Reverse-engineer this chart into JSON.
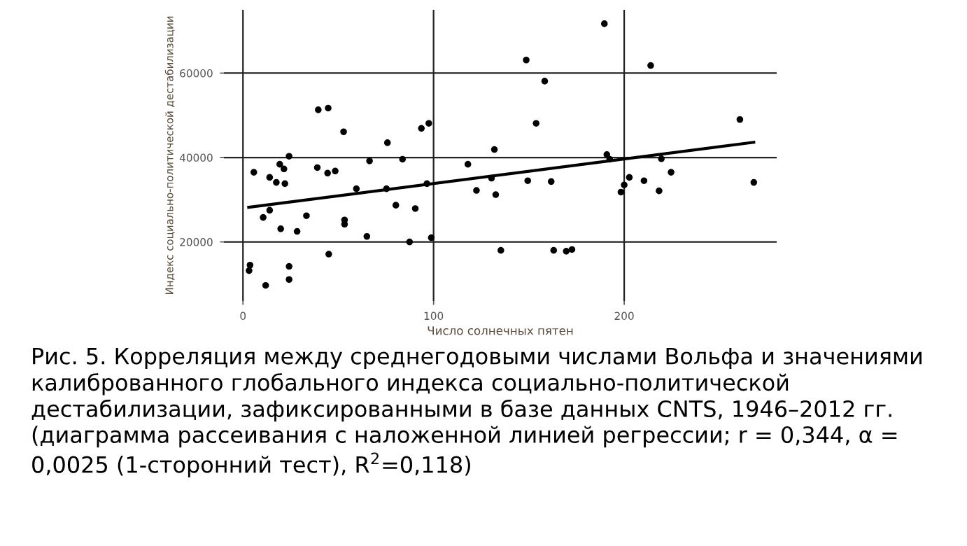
{
  "chart_data": {
    "type": "scatter",
    "xlabel": "Число солнечных пятен",
    "ylabel": "Индекс социально-политической дестабилизации",
    "xlim": [
      -10,
      280
    ],
    "ylim": [
      6000,
      75000
    ],
    "xticks": [
      0,
      100,
      200
    ],
    "yticks": [
      20000,
      40000,
      60000
    ],
    "grid": true,
    "marker": "circle",
    "series": [
      {
        "color": "#000000",
        "x": [
          3.7,
          3.2,
          5.7,
          11.9,
          14,
          10.6,
          14,
          19.3,
          21.5,
          17.5,
          22,
          24.2,
          19.8,
          24.2,
          24.2,
          28.4,
          33.3,
          39,
          39.5,
          44.7,
          44.4,
          48.4,
          45,
          52.8,
          53.3,
          53.3,
          59.5,
          65,
          66.4,
          75.8,
          75.3,
          83.7,
          80.2,
          87.4,
          90.4,
          93.6,
          97.5,
          96.5,
          98.8,
          118,
          122.5,
          130.4,
          131.9,
          132.6,
          135.3,
          148.6,
          149.4,
          153.8,
          158.3,
          161.7,
          163,
          169.6,
          172.6,
          189.6,
          213.9,
          190.9,
          192.4,
          198.3,
          200,
          202.7,
          210.4,
          218.3,
          219.5,
          224.6,
          260.7,
          268
        ],
        "values": [
          14500,
          13200,
          36500,
          9700,
          35300,
          25800,
          27500,
          38400,
          37300,
          34100,
          33800,
          40300,
          23100,
          14200,
          11100,
          22500,
          26200,
          37600,
          51300,
          51700,
          36300,
          36800,
          17100,
          46100,
          25200,
          24200,
          32600,
          21300,
          39200,
          43500,
          32600,
          39600,
          28700,
          20000,
          27900,
          46900,
          48100,
          33800,
          21000,
          38400,
          32200,
          35100,
          41900,
          31200,
          18000,
          63100,
          34500,
          48100,
          58100,
          34300,
          18000,
          17800,
          18200,
          71700,
          61800,
          40700,
          39600,
          31800,
          33500,
          35300,
          34500,
          32100,
          39700,
          36500,
          49000,
          34100
        ]
      },
      {
        "type": "line",
        "color": "#000000",
        "marker": "none",
        "x": [
          3,
          268
        ],
        "values": [
          28200,
          43600
        ]
      }
    ],
    "annotations": [
      "Рис. 5. Корреляция между среднегодовыми числами Вольфа и значениями калиброванного глобального индекса социально-политической дестабилизации, зафиксированными в базе данных CNTS, 1946–2012 гг. (диаграмма рассеивания с наложенной линией регрессии; r = 0,344, α = 0,0025 (1-сторонний тест), R$^{2}$=0,118)"
    ]
  }
}
